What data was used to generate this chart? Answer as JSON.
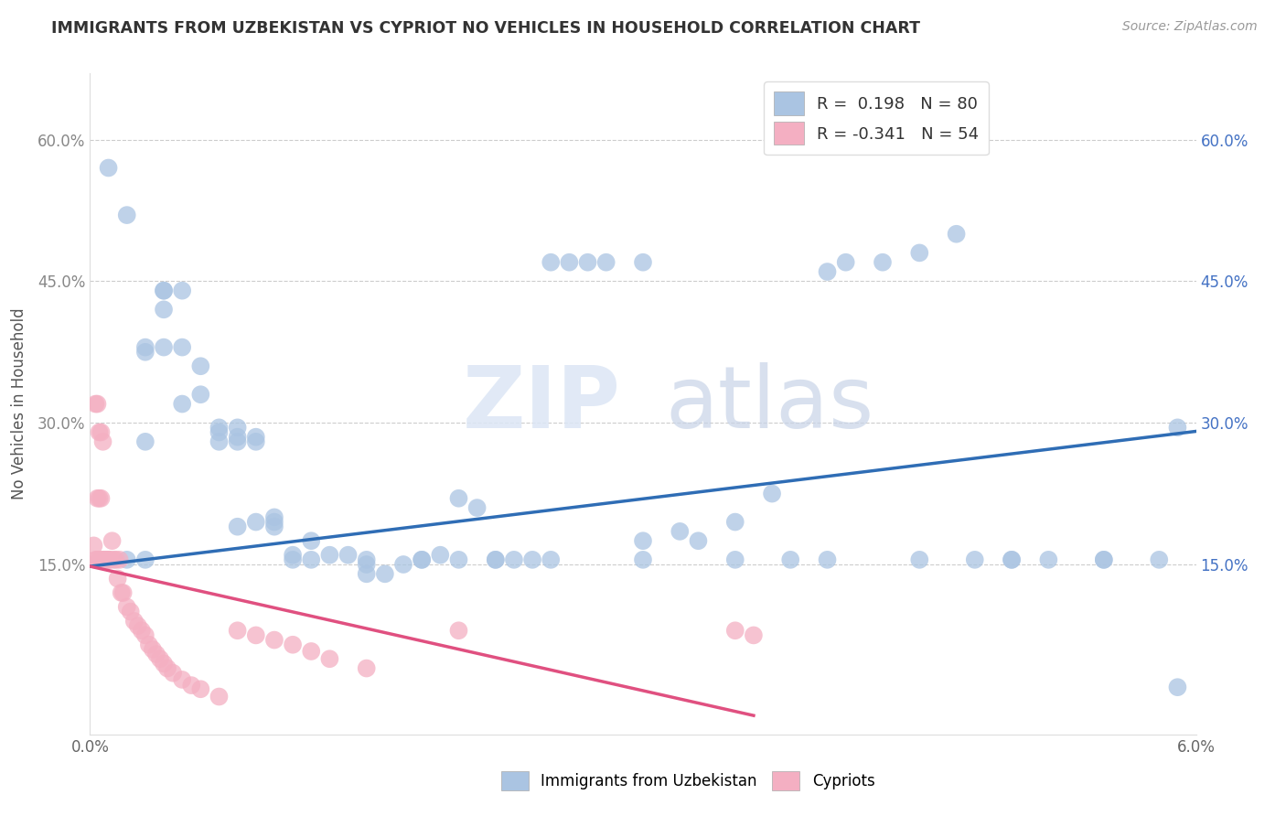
{
  "title": "IMMIGRANTS FROM UZBEKISTAN VS CYPRIOT NO VEHICLES IN HOUSEHOLD CORRELATION CHART",
  "source": "Source: ZipAtlas.com",
  "ylabel": "No Vehicles in Household",
  "ytick_labels": [
    "15.0%",
    "30.0%",
    "45.0%",
    "60.0%"
  ],
  "ytick_values": [
    0.15,
    0.3,
    0.45,
    0.6
  ],
  "xlim": [
    0.0,
    0.06
  ],
  "ylim": [
    -0.03,
    0.67
  ],
  "blue_R": 0.198,
  "blue_N": 80,
  "pink_R": -0.341,
  "pink_N": 54,
  "legend_label_blue": "Immigrants from Uzbekistan",
  "legend_label_pink": "Cypriots",
  "blue_color": "#aac4e2",
  "pink_color": "#f4afc2",
  "blue_line_color": "#2f6db5",
  "pink_line_color": "#e05080",
  "watermark_zip": "ZIP",
  "watermark_atlas": "atlas",
  "background_color": "#ffffff",
  "blue_line_x0": 0.0,
  "blue_line_y0": 0.148,
  "blue_line_x1": 0.06,
  "blue_line_y1": 0.291,
  "pink_line_x0": 0.0,
  "pink_line_y0": 0.148,
  "pink_line_x1": 0.036,
  "pink_line_y1": -0.01,
  "blue_scatter_x": [
    0.002,
    0.003,
    0.003,
    0.004,
    0.004,
    0.005,
    0.005,
    0.006,
    0.006,
    0.007,
    0.007,
    0.008,
    0.008,
    0.008,
    0.009,
    0.009,
    0.01,
    0.01,
    0.011,
    0.011,
    0.012,
    0.013,
    0.014,
    0.015,
    0.015,
    0.016,
    0.017,
    0.018,
    0.019,
    0.02,
    0.021,
    0.022,
    0.022,
    0.023,
    0.024,
    0.025,
    0.026,
    0.027,
    0.028,
    0.03,
    0.03,
    0.032,
    0.033,
    0.035,
    0.037,
    0.038,
    0.04,
    0.041,
    0.043,
    0.045,
    0.047,
    0.048,
    0.05,
    0.052,
    0.055,
    0.058,
    0.059,
    0.001,
    0.002,
    0.003,
    0.003,
    0.004,
    0.004,
    0.005,
    0.007,
    0.008,
    0.009,
    0.01,
    0.012,
    0.015,
    0.018,
    0.02,
    0.025,
    0.03,
    0.035,
    0.04,
    0.045,
    0.05,
    0.055,
    0.059
  ],
  "blue_scatter_y": [
    0.52,
    0.375,
    0.38,
    0.38,
    0.42,
    0.38,
    0.32,
    0.36,
    0.33,
    0.29,
    0.295,
    0.295,
    0.28,
    0.285,
    0.28,
    0.285,
    0.2,
    0.195,
    0.155,
    0.16,
    0.175,
    0.16,
    0.16,
    0.15,
    0.14,
    0.14,
    0.15,
    0.155,
    0.16,
    0.22,
    0.21,
    0.155,
    0.155,
    0.155,
    0.155,
    0.47,
    0.47,
    0.47,
    0.47,
    0.47,
    0.175,
    0.185,
    0.175,
    0.195,
    0.225,
    0.155,
    0.46,
    0.47,
    0.47,
    0.48,
    0.5,
    0.155,
    0.155,
    0.155,
    0.155,
    0.155,
    0.02,
    0.57,
    0.155,
    0.155,
    0.28,
    0.44,
    0.44,
    0.44,
    0.28,
    0.19,
    0.195,
    0.19,
    0.155,
    0.155,
    0.155,
    0.155,
    0.155,
    0.155,
    0.155,
    0.155,
    0.155,
    0.155,
    0.155,
    0.295
  ],
  "pink_scatter_x": [
    0.0002,
    0.0003,
    0.0003,
    0.0004,
    0.0004,
    0.0005,
    0.0005,
    0.0006,
    0.0006,
    0.0007,
    0.0007,
    0.0008,
    0.0008,
    0.0009,
    0.001,
    0.001,
    0.0011,
    0.0012,
    0.0013,
    0.0014,
    0.0015,
    0.0016,
    0.0017,
    0.0018,
    0.002,
    0.0022,
    0.0024,
    0.0026,
    0.0028,
    0.003,
    0.0032,
    0.0034,
    0.0036,
    0.0038,
    0.004,
    0.0042,
    0.0045,
    0.005,
    0.0055,
    0.006,
    0.007,
    0.008,
    0.009,
    0.01,
    0.011,
    0.012,
    0.013,
    0.015,
    0.02,
    0.035,
    0.036,
    0.0004,
    0.0005,
    0.0006
  ],
  "pink_scatter_y": [
    0.17,
    0.32,
    0.155,
    0.32,
    0.155,
    0.29,
    0.155,
    0.29,
    0.155,
    0.28,
    0.155,
    0.155,
    0.155,
    0.155,
    0.155,
    0.155,
    0.155,
    0.175,
    0.155,
    0.155,
    0.135,
    0.155,
    0.12,
    0.12,
    0.105,
    0.1,
    0.09,
    0.085,
    0.08,
    0.075,
    0.065,
    0.06,
    0.055,
    0.05,
    0.045,
    0.04,
    0.035,
    0.028,
    0.022,
    0.018,
    0.01,
    0.08,
    0.075,
    0.07,
    0.065,
    0.058,
    0.05,
    0.04,
    0.08,
    0.08,
    0.075,
    0.22,
    0.22,
    0.22
  ]
}
